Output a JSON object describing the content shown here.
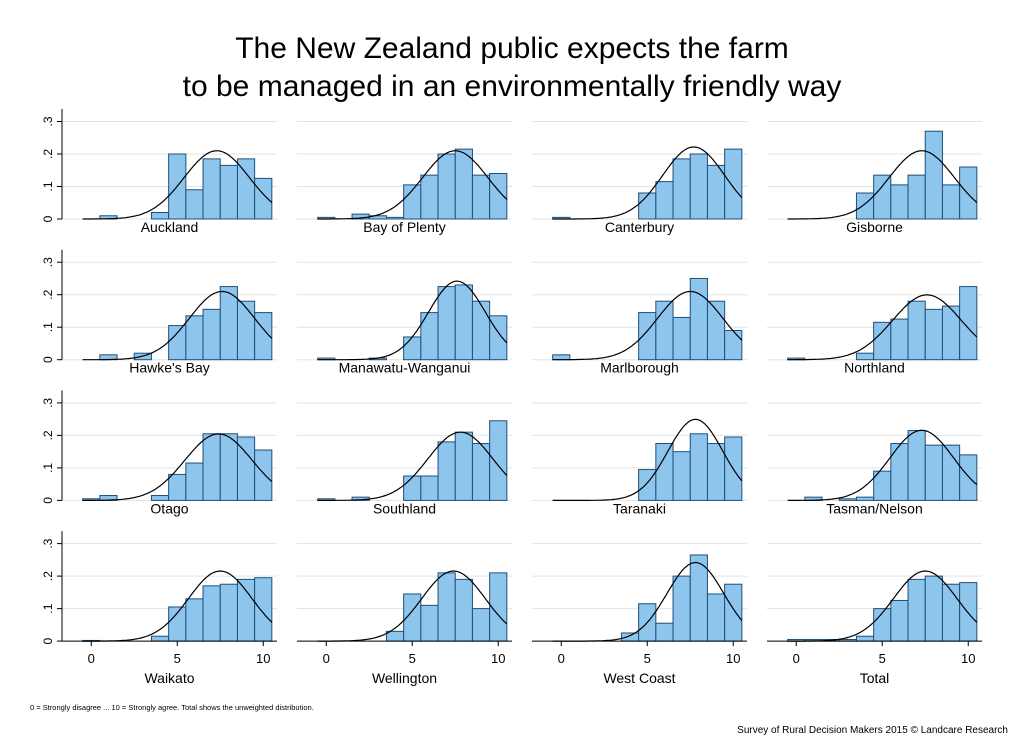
{
  "title": [
    "The New Zealand public expects the farm",
    "to be managed in an environmentally friendly way"
  ],
  "footnote": "0 = Strongly disagree ... 10 = Strongly agree. Total shows the unweighted distribution.",
  "source": "Survey of Rural Decision Makers 2015 © Landcare Research",
  "chart_data": [
    {
      "type": "histogram",
      "label": "Auckland",
      "bins": [
        -0.5,
        0.5,
        1.5,
        2.5,
        3.5,
        4.5,
        5.5,
        6.5,
        7.5,
        8.5,
        9.5,
        10.5
      ],
      "counts": [
        0,
        0.01,
        0,
        0,
        0.02,
        0.2,
        0.09,
        0.185,
        0.165,
        0.185,
        0.125
      ],
      "normal": {
        "mean": 7.3,
        "sd": 1.9
      },
      "color": "#8ec5ec",
      "xlim": [
        -1.7,
        10.8
      ],
      "ylim": [
        0,
        0.32
      ],
      "yticks": [
        0,
        {
          "value": 0.1,
          "label": ".1"
        },
        {
          "value": 0.2,
          "label": ".2"
        },
        {
          "value": 0.3,
          "label": ".3"
        }
      ]
    },
    {
      "type": "histogram",
      "label": "Bay of Plenty",
      "bins": [
        -0.5,
        0.5,
        1.5,
        2.5,
        3.5,
        4.5,
        5.5,
        6.5,
        7.5,
        8.5,
        9.5,
        10.5
      ],
      "counts": [
        0.005,
        0,
        0.015,
        0.01,
        0.005,
        0.105,
        0.135,
        0.2,
        0.215,
        0.135,
        0.14
      ],
      "normal": {
        "mean": 7.5,
        "sd": 1.9
      },
      "color": "#8ec5ec",
      "xlim": [
        -1.7,
        10.8
      ],
      "ylim": [
        0,
        0.32
      ],
      "yticks": [
        0,
        {
          "value": 0.1,
          "label": ".1"
        },
        {
          "value": 0.2,
          "label": ".2"
        },
        {
          "value": 0.3,
          "label": ".3"
        }
      ]
    },
    {
      "type": "histogram",
      "label": "Canterbury",
      "bins": [
        -0.5,
        0.5,
        1.5,
        2.5,
        3.5,
        4.5,
        5.5,
        6.5,
        7.5,
        8.5,
        9.5,
        10.5
      ],
      "counts": [
        0.005,
        0,
        0,
        0,
        0,
        0.08,
        0.115,
        0.185,
        0.2,
        0.165,
        0.215
      ],
      "normal": {
        "mean": 7.7,
        "sd": 1.8
      },
      "color": "#8ec5ec",
      "xlim": [
        -1.7,
        10.8
      ],
      "ylim": [
        0,
        0.32
      ],
      "yticks": [
        0,
        {
          "value": 0.1,
          "label": ".1"
        },
        {
          "value": 0.2,
          "label": ".2"
        },
        {
          "value": 0.3,
          "label": ".3"
        }
      ]
    },
    {
      "type": "histogram",
      "label": "Gisborne",
      "bins": [
        -0.5,
        0.5,
        1.5,
        2.5,
        3.5,
        4.5,
        5.5,
        6.5,
        7.5,
        8.5,
        9.5,
        10.5
      ],
      "counts": [
        0,
        0,
        0,
        0,
        0.08,
        0.135,
        0.105,
        0.135,
        0.27,
        0.105,
        0.16
      ],
      "normal": {
        "mean": 7.3,
        "sd": 1.9
      },
      "color": "#8ec5ec",
      "xlim": [
        -1.7,
        10.8
      ],
      "ylim": [
        0,
        0.32
      ],
      "yticks": [
        0,
        {
          "value": 0.1,
          "label": ".1"
        },
        {
          "value": 0.2,
          "label": ".2"
        },
        {
          "value": 0.3,
          "label": ".3"
        }
      ]
    },
    {
      "type": "histogram",
      "label": "Hawke's Bay",
      "bins": [
        -0.5,
        0.5,
        1.5,
        2.5,
        3.5,
        4.5,
        5.5,
        6.5,
        7.5,
        8.5,
        9.5,
        10.5
      ],
      "counts": [
        0,
        0.015,
        0,
        0.02,
        0,
        0.105,
        0.135,
        0.155,
        0.225,
        0.18,
        0.145
      ],
      "normal": {
        "mean": 7.6,
        "sd": 1.9
      },
      "color": "#8ec5ec",
      "xlim": [
        -1.7,
        10.8
      ],
      "ylim": [
        0,
        0.32
      ],
      "yticks": [
        0,
        {
          "value": 0.1,
          "label": ".1"
        },
        {
          "value": 0.2,
          "label": ".2"
        },
        {
          "value": 0.3,
          "label": ".3"
        }
      ]
    },
    {
      "type": "histogram",
      "label": "Manawatu-Wanganui",
      "bins": [
        -0.5,
        0.5,
        1.5,
        2.5,
        3.5,
        4.5,
        5.5,
        6.5,
        7.5,
        8.5,
        9.5,
        10.5
      ],
      "counts": [
        0.005,
        0,
        0,
        0.005,
        0,
        0.07,
        0.145,
        0.225,
        0.23,
        0.18,
        0.135
      ],
      "normal": {
        "mean": 7.6,
        "sd": 1.65
      },
      "color": "#8ec5ec",
      "xlim": [
        -1.7,
        10.8
      ],
      "ylim": [
        0,
        0.32
      ],
      "yticks": [
        0,
        {
          "value": 0.1,
          "label": ".1"
        },
        {
          "value": 0.2,
          "label": ".2"
        },
        {
          "value": 0.3,
          "label": ".3"
        }
      ]
    },
    {
      "type": "histogram",
      "label": "Marlborough",
      "bins": [
        -0.5,
        0.5,
        1.5,
        2.5,
        3.5,
        4.5,
        5.5,
        6.5,
        7.5,
        8.5,
        9.5,
        10.5
      ],
      "counts": [
        0.015,
        0,
        0,
        0,
        0,
        0.145,
        0.18,
        0.13,
        0.25,
        0.18,
        0.09
      ],
      "normal": {
        "mean": 7.5,
        "sd": 1.9
      },
      "color": "#8ec5ec",
      "xlim": [
        -1.7,
        10.8
      ],
      "ylim": [
        0,
        0.32
      ],
      "yticks": [
        0,
        {
          "value": 0.1,
          "label": ".1"
        },
        {
          "value": 0.2,
          "label": ".2"
        },
        {
          "value": 0.3,
          "label": ".3"
        }
      ]
    },
    {
      "type": "histogram",
      "label": "Northland",
      "bins": [
        -0.5,
        0.5,
        1.5,
        2.5,
        3.5,
        4.5,
        5.5,
        6.5,
        7.5,
        8.5,
        9.5,
        10.5
      ],
      "counts": [
        0.005,
        0,
        0,
        0,
        0.02,
        0.115,
        0.125,
        0.18,
        0.155,
        0.165,
        0.225
      ],
      "normal": {
        "mean": 7.6,
        "sd": 2.0
      },
      "color": "#8ec5ec",
      "xlim": [
        -1.7,
        10.8
      ],
      "ylim": [
        0,
        0.32
      ],
      "yticks": [
        0,
        {
          "value": 0.1,
          "label": ".1"
        },
        {
          "value": 0.2,
          "label": ".2"
        },
        {
          "value": 0.3,
          "label": ".3"
        }
      ]
    },
    {
      "type": "histogram",
      "label": "Otago",
      "bins": [
        -0.5,
        0.5,
        1.5,
        2.5,
        3.5,
        4.5,
        5.5,
        6.5,
        7.5,
        8.5,
        9.5,
        10.5
      ],
      "counts": [
        0.005,
        0.015,
        0,
        0,
        0.015,
        0.08,
        0.115,
        0.205,
        0.205,
        0.195,
        0.155
      ],
      "normal": {
        "mean": 7.4,
        "sd": 1.95
      },
      "color": "#8ec5ec",
      "xlim": [
        -1.7,
        10.8
      ],
      "ylim": [
        0,
        0.32
      ],
      "yticks": [
        0,
        {
          "value": 0.1,
          "label": ".1"
        },
        {
          "value": 0.2,
          "label": ".2"
        },
        {
          "value": 0.3,
          "label": ".3"
        }
      ]
    },
    {
      "type": "histogram",
      "label": "Southland",
      "bins": [
        -0.5,
        0.5,
        1.5,
        2.5,
        3.5,
        4.5,
        5.5,
        6.5,
        7.5,
        8.5,
        9.5,
        10.5
      ],
      "counts": [
        0.005,
        0,
        0.01,
        0,
        0,
        0.075,
        0.075,
        0.18,
        0.21,
        0.175,
        0.245
      ],
      "normal": {
        "mean": 7.8,
        "sd": 1.9
      },
      "color": "#8ec5ec",
      "xlim": [
        -1.7,
        10.8
      ],
      "ylim": [
        0,
        0.32
      ],
      "yticks": [
        0,
        {
          "value": 0.1,
          "label": ".1"
        },
        {
          "value": 0.2,
          "label": ".2"
        },
        {
          "value": 0.3,
          "label": ".3"
        }
      ]
    },
    {
      "type": "histogram",
      "label": "Taranaki",
      "bins": [
        -0.5,
        0.5,
        1.5,
        2.5,
        3.5,
        4.5,
        5.5,
        6.5,
        7.5,
        8.5,
        9.5,
        10.5
      ],
      "counts": [
        0,
        0,
        0,
        0,
        0,
        0.095,
        0.175,
        0.15,
        0.205,
        0.175,
        0.195
      ],
      "normal": {
        "mean": 7.8,
        "sd": 1.6
      },
      "color": "#8ec5ec",
      "xlim": [
        -1.7,
        10.8
      ],
      "ylim": [
        0,
        0.32
      ],
      "yticks": [
        0,
        {
          "value": 0.1,
          "label": ".1"
        },
        {
          "value": 0.2,
          "label": ".2"
        },
        {
          "value": 0.3,
          "label": ".3"
        }
      ]
    },
    {
      "type": "histogram",
      "label": "Tasman/Nelson",
      "bins": [
        -0.5,
        0.5,
        1.5,
        2.5,
        3.5,
        4.5,
        5.5,
        6.5,
        7.5,
        8.5,
        9.5,
        10.5
      ],
      "counts": [
        0,
        0.01,
        0,
        0.005,
        0.01,
        0.09,
        0.175,
        0.215,
        0.17,
        0.17,
        0.14
      ],
      "normal": {
        "mean": 7.3,
        "sd": 1.85
      },
      "color": "#8ec5ec",
      "xlim": [
        -1.7,
        10.8
      ],
      "ylim": [
        0,
        0.32
      ],
      "yticks": [
        0,
        {
          "value": 0.1,
          "label": ".1"
        },
        {
          "value": 0.2,
          "label": ".2"
        },
        {
          "value": 0.3,
          "label": ".3"
        }
      ]
    },
    {
      "type": "histogram",
      "label": "Waikato",
      "bins": [
        -0.5,
        0.5,
        1.5,
        2.5,
        3.5,
        4.5,
        5.5,
        6.5,
        7.5,
        8.5,
        9.5,
        10.5
      ],
      "counts": [
        0.002,
        0,
        0,
        0,
        0.015,
        0.105,
        0.13,
        0.17,
        0.175,
        0.19,
        0.195
      ],
      "normal": {
        "mean": 7.5,
        "sd": 1.85
      },
      "color": "#8ec5ec",
      "xlim": [
        -1.7,
        10.8
      ],
      "ylim": [
        0,
        0.32
      ],
      "yticks": [
        0,
        {
          "value": 0.1,
          "label": ".1"
        },
        {
          "value": 0.2,
          "label": ".2"
        },
        {
          "value": 0.3,
          "label": ".3"
        }
      ],
      "xticks": [
        0,
        5,
        10
      ]
    },
    {
      "type": "histogram",
      "label": "Wellington",
      "bins": [
        -0.5,
        0.5,
        1.5,
        2.5,
        3.5,
        4.5,
        5.5,
        6.5,
        7.5,
        8.5,
        9.5,
        10.5
      ],
      "counts": [
        0,
        0,
        0,
        0,
        0.03,
        0.145,
        0.11,
        0.21,
        0.19,
        0.1,
        0.21
      ],
      "normal": {
        "mean": 7.4,
        "sd": 1.85
      },
      "color": "#8ec5ec",
      "xlim": [
        -1.7,
        10.8
      ],
      "ylim": [
        0,
        0.32
      ],
      "yticks": [
        0,
        {
          "value": 0.1,
          "label": ".1"
        },
        {
          "value": 0.2,
          "label": ".2"
        },
        {
          "value": 0.3,
          "label": ".3"
        }
      ],
      "xticks": [
        0,
        5,
        10
      ]
    },
    {
      "type": "histogram",
      "label": "West Coast",
      "bins": [
        -0.5,
        0.5,
        1.5,
        2.5,
        3.5,
        4.5,
        5.5,
        6.5,
        7.5,
        8.5,
        9.5,
        10.5
      ],
      "counts": [
        0,
        0,
        0,
        0,
        0.025,
        0.115,
        0.055,
        0.2,
        0.265,
        0.145,
        0.175
      ],
      "normal": {
        "mean": 7.8,
        "sd": 1.65
      },
      "color": "#8ec5ec",
      "xlim": [
        -1.7,
        10.8
      ],
      "ylim": [
        0,
        0.32
      ],
      "yticks": [
        0,
        {
          "value": 0.1,
          "label": ".1"
        },
        {
          "value": 0.2,
          "label": ".2"
        },
        {
          "value": 0.3,
          "label": ".3"
        }
      ],
      "xticks": [
        0,
        5,
        10
      ]
    },
    {
      "type": "histogram",
      "label": "Total",
      "bins": [
        -0.5,
        0.5,
        1.5,
        2.5,
        3.5,
        4.5,
        5.5,
        6.5,
        7.5,
        8.5,
        9.5,
        10.5
      ],
      "counts": [
        0.005,
        0.005,
        0.005,
        0.005,
        0.015,
        0.1,
        0.125,
        0.19,
        0.2,
        0.175,
        0.18
      ],
      "normal": {
        "mean": 7.5,
        "sd": 1.85
      },
      "color": "#8ec5ec",
      "xlim": [
        -1.7,
        10.8
      ],
      "ylim": [
        0,
        0.32
      ],
      "yticks": [
        0,
        {
          "value": 0.1,
          "label": ".1"
        },
        {
          "value": 0.2,
          "label": ".2"
        },
        {
          "value": 0.3,
          "label": ".3"
        }
      ],
      "xticks": [
        0,
        5,
        10
      ]
    }
  ]
}
